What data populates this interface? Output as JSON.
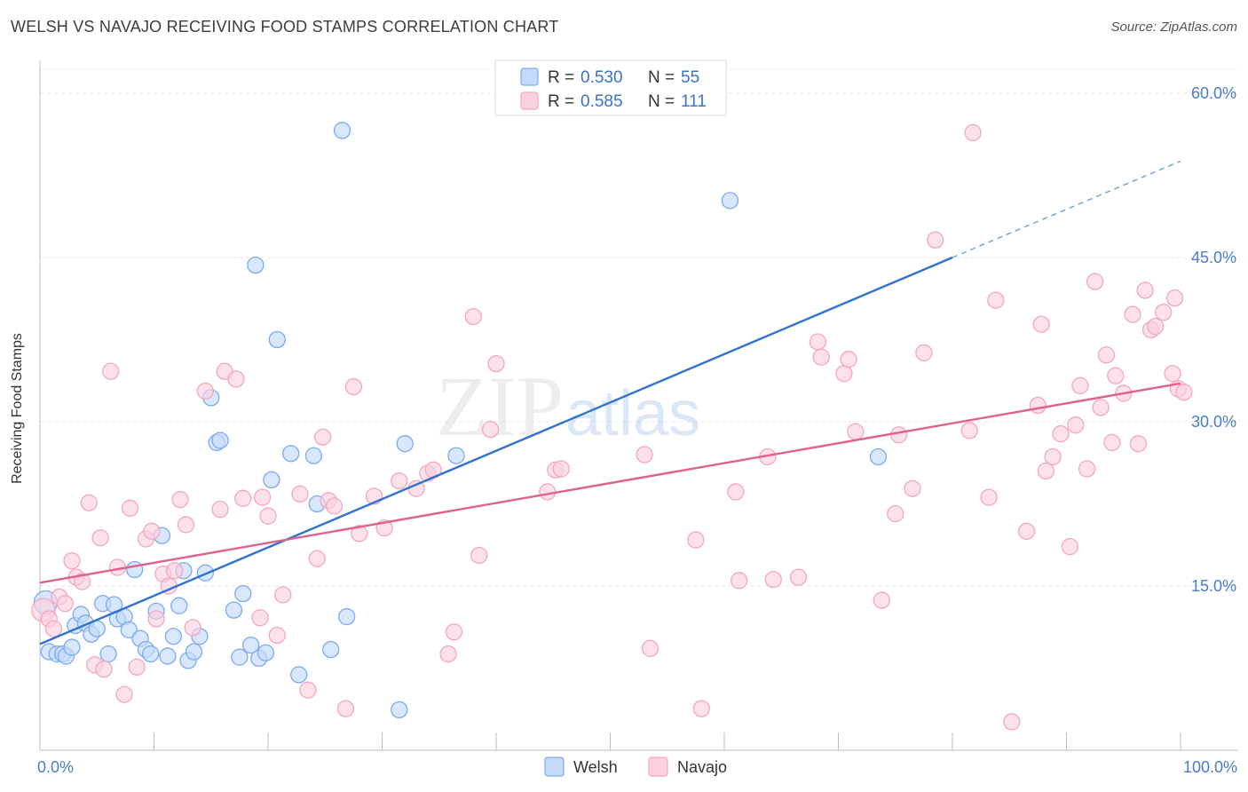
{
  "chart_data": {
    "type": "scatter",
    "title": "WELSH VS NAVAJO RECEIVING FOOD STAMPS CORRELATION CHART",
    "source": "Source: ZipAtlas.com",
    "ylabel": "Receiving Food Stamps",
    "xlabel": "",
    "xlim": [
      0,
      100
    ],
    "ylim": [
      0,
      63
    ],
    "x_tick_labels": [
      "0.0%",
      "100.0%"
    ],
    "y_ticks": [
      15,
      30,
      45,
      60
    ],
    "y_tick_labels": [
      "15.0%",
      "30.0%",
      "45.0%",
      "60.0%"
    ],
    "grid": true,
    "watermark": "ZIPatlas",
    "legend_position": "top-center",
    "legend": [
      {
        "r_label": "R =",
        "r_value": "0.530",
        "n_label": "N =",
        "n_value": "55"
      },
      {
        "r_label": "R =",
        "r_value": "0.585",
        "n_label": "N =",
        "n_value": "111"
      }
    ],
    "series": [
      {
        "name": "Welsh",
        "color": "#7aaaf0",
        "line_color": "#2f72d0",
        "trend": {
          "x0": 0,
          "y0": 9.7,
          "x1": 80,
          "y1": 45.0,
          "dash_to_x": 100,
          "dash_to_y": 53.8
        },
        "points": [
          [
            0.5,
            13.5
          ],
          [
            0.8,
            9.0
          ],
          [
            1.5,
            8.8
          ],
          [
            2.0,
            8.8
          ],
          [
            2.3,
            8.6
          ],
          [
            2.8,
            9.4
          ],
          [
            3.1,
            11.4
          ],
          [
            3.6,
            12.4
          ],
          [
            4.0,
            11.6
          ],
          [
            4.5,
            10.6
          ],
          [
            5.0,
            11.1
          ],
          [
            5.5,
            13.4
          ],
          [
            6.0,
            8.8
          ],
          [
            6.5,
            13.3
          ],
          [
            6.8,
            12.0
          ],
          [
            7.4,
            12.2
          ],
          [
            7.8,
            11.0
          ],
          [
            8.3,
            16.5
          ],
          [
            8.8,
            10.2
          ],
          [
            9.3,
            9.2
          ],
          [
            9.7,
            8.8
          ],
          [
            10.2,
            12.7
          ],
          [
            10.7,
            19.6
          ],
          [
            11.2,
            8.6
          ],
          [
            11.7,
            10.4
          ],
          [
            12.2,
            13.2
          ],
          [
            12.6,
            16.4
          ],
          [
            13.0,
            8.2
          ],
          [
            13.5,
            9.0
          ],
          [
            14.0,
            10.4
          ],
          [
            14.5,
            16.2
          ],
          [
            15.0,
            32.2
          ],
          [
            15.5,
            28.1
          ],
          [
            15.8,
            28.3
          ],
          [
            17.0,
            12.8
          ],
          [
            17.5,
            8.5
          ],
          [
            17.8,
            14.3
          ],
          [
            18.5,
            9.6
          ],
          [
            18.9,
            44.3
          ],
          [
            19.2,
            8.4
          ],
          [
            19.8,
            8.9
          ],
          [
            20.3,
            24.7
          ],
          [
            20.8,
            37.5
          ],
          [
            22.0,
            27.1
          ],
          [
            22.7,
            6.9
          ],
          [
            24.0,
            26.9
          ],
          [
            24.3,
            22.5
          ],
          [
            25.5,
            9.2
          ],
          [
            26.5,
            56.6
          ],
          [
            26.9,
            12.2
          ],
          [
            31.5,
            3.7
          ],
          [
            32.0,
            28.0
          ],
          [
            36.5,
            26.9
          ],
          [
            60.5,
            50.2
          ],
          [
            73.5,
            26.8
          ]
        ]
      },
      {
        "name": "Navajo",
        "color": "#f4a6c0",
        "line_color": "#e0608e",
        "trend": {
          "x0": 0,
          "y0": 15.3,
          "x1": 100,
          "y1": 33.5
        },
        "points": [
          [
            0.3,
            12.8
          ],
          [
            0.8,
            12.0
          ],
          [
            1.2,
            11.1
          ],
          [
            1.7,
            14.0
          ],
          [
            2.2,
            13.4
          ],
          [
            2.8,
            17.3
          ],
          [
            3.2,
            15.8
          ],
          [
            3.7,
            15.4
          ],
          [
            4.3,
            22.6
          ],
          [
            4.8,
            7.8
          ],
          [
            5.3,
            19.4
          ],
          [
            5.6,
            7.4
          ],
          [
            6.2,
            34.6
          ],
          [
            6.8,
            16.7
          ],
          [
            7.4,
            5.1
          ],
          [
            7.9,
            22.1
          ],
          [
            8.5,
            7.6
          ],
          [
            9.3,
            19.3
          ],
          [
            9.8,
            20.0
          ],
          [
            10.2,
            12.0
          ],
          [
            10.8,
            16.1
          ],
          [
            11.3,
            15.0
          ],
          [
            11.8,
            16.4
          ],
          [
            12.3,
            22.9
          ],
          [
            12.8,
            20.6
          ],
          [
            13.4,
            11.2
          ],
          [
            14.5,
            32.8
          ],
          [
            15.8,
            22.0
          ],
          [
            16.2,
            34.6
          ],
          [
            17.2,
            33.9
          ],
          [
            17.8,
            23.0
          ],
          [
            19.3,
            12.1
          ],
          [
            19.5,
            23.1
          ],
          [
            20.0,
            21.4
          ],
          [
            20.8,
            10.5
          ],
          [
            21.3,
            14.2
          ],
          [
            22.8,
            23.4
          ],
          [
            23.5,
            5.5
          ],
          [
            24.3,
            17.5
          ],
          [
            24.8,
            28.6
          ],
          [
            25.3,
            22.8
          ],
          [
            25.8,
            22.3
          ],
          [
            26.8,
            3.8
          ],
          [
            27.5,
            33.2
          ],
          [
            28.0,
            19.8
          ],
          [
            29.3,
            23.2
          ],
          [
            30.2,
            20.3
          ],
          [
            31.5,
            24.6
          ],
          [
            33.0,
            23.9
          ],
          [
            34.0,
            25.3
          ],
          [
            34.5,
            25.6
          ],
          [
            35.8,
            8.8
          ],
          [
            36.3,
            10.8
          ],
          [
            38.0,
            39.6
          ],
          [
            38.5,
            17.8
          ],
          [
            39.5,
            29.3
          ],
          [
            40.0,
            35.3
          ],
          [
            44.5,
            23.6
          ],
          [
            45.2,
            25.6
          ],
          [
            45.7,
            25.7
          ],
          [
            53.0,
            27.0
          ],
          [
            53.5,
            9.3
          ],
          [
            57.5,
            19.2
          ],
          [
            58.0,
            3.8
          ],
          [
            61.0,
            23.6
          ],
          [
            61.3,
            15.5
          ],
          [
            63.8,
            26.8
          ],
          [
            64.3,
            15.6
          ],
          [
            66.5,
            15.8
          ],
          [
            68.2,
            37.3
          ],
          [
            68.5,
            35.9
          ],
          [
            70.5,
            34.4
          ],
          [
            70.9,
            35.7
          ],
          [
            71.5,
            29.1
          ],
          [
            73.8,
            13.7
          ],
          [
            75.0,
            21.6
          ],
          [
            75.3,
            28.8
          ],
          [
            76.5,
            23.9
          ],
          [
            77.5,
            36.3
          ],
          [
            78.5,
            46.6
          ],
          [
            81.5,
            29.2
          ],
          [
            81.8,
            56.4
          ],
          [
            83.2,
            23.1
          ],
          [
            83.8,
            41.1
          ],
          [
            85.2,
            2.6
          ],
          [
            86.5,
            20.0
          ],
          [
            87.5,
            31.5
          ],
          [
            87.8,
            38.9
          ],
          [
            88.2,
            25.5
          ],
          [
            88.8,
            26.8
          ],
          [
            89.5,
            28.9
          ],
          [
            90.3,
            18.6
          ],
          [
            90.8,
            29.7
          ],
          [
            91.2,
            33.3
          ],
          [
            91.8,
            25.7
          ],
          [
            92.5,
            42.8
          ],
          [
            93.0,
            31.3
          ],
          [
            93.5,
            36.1
          ],
          [
            94.0,
            28.1
          ],
          [
            94.3,
            34.2
          ],
          [
            95.0,
            32.6
          ],
          [
            95.8,
            39.8
          ],
          [
            96.3,
            28.0
          ],
          [
            96.9,
            42.0
          ],
          [
            97.4,
            38.4
          ],
          [
            97.8,
            38.7
          ],
          [
            98.5,
            40.0
          ],
          [
            99.3,
            34.4
          ],
          [
            99.5,
            41.3
          ],
          [
            99.8,
            33.0
          ],
          [
            100.3,
            32.7
          ]
        ]
      }
    ]
  }
}
